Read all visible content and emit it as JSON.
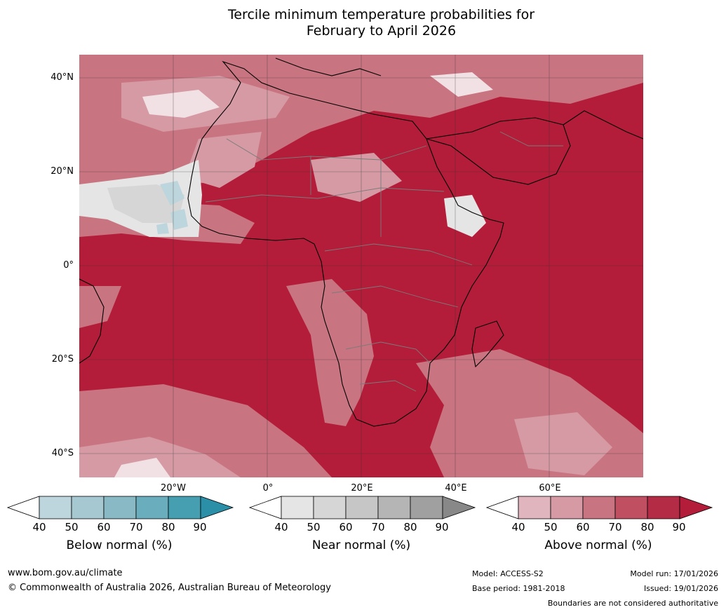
{
  "title": {
    "line1": "Tercile minimum temperature probabilities for",
    "line2": "February to April 2026"
  },
  "lat_labels": [
    "40°N",
    "20°N",
    "0°",
    "20°S",
    "40°S"
  ],
  "lon_labels": [
    "20°W",
    "0°",
    "20°E",
    "40°E",
    "60°E"
  ],
  "colorbars": [
    {
      "label": "Below normal (%)",
      "ticks": [
        "40",
        "50",
        "60",
        "70",
        "80",
        "90"
      ],
      "colors": [
        "#ffffff",
        "#bdd5dc",
        "#a6c8d0",
        "#89b9c4",
        "#6aaebe",
        "#469fb1",
        "#2b8fa8"
      ]
    },
    {
      "label": "Near normal (%)",
      "ticks": [
        "40",
        "50",
        "60",
        "70",
        "80",
        "90"
      ],
      "colors": [
        "#ffffff",
        "#e5e5e5",
        "#d6d6d6",
        "#c6c6c6",
        "#b5b5b5",
        "#a0a0a0",
        "#888888"
      ]
    },
    {
      "label": "Above normal (%)",
      "ticks": [
        "40",
        "50",
        "60",
        "70",
        "80",
        "90"
      ],
      "colors": [
        "#ffffff",
        "#e0b5bd",
        "#d59aa4",
        "#c97481",
        "#c04f62",
        "#b32b45",
        "#b31d3a"
      ]
    }
  ],
  "footer": {
    "website": "www.bom.gov.au/climate",
    "copyright": "© Commonwealth of Australia 2026, Australian Bureau of Meteorology",
    "model": "Model: ACCESS-S2",
    "base_period": "Base period: 1981-2018",
    "model_run": "Model run: 17/01/2026",
    "issued": "Issued: 19/01/2026",
    "disclaimer": "Boundaries are not considered authoritative"
  }
}
